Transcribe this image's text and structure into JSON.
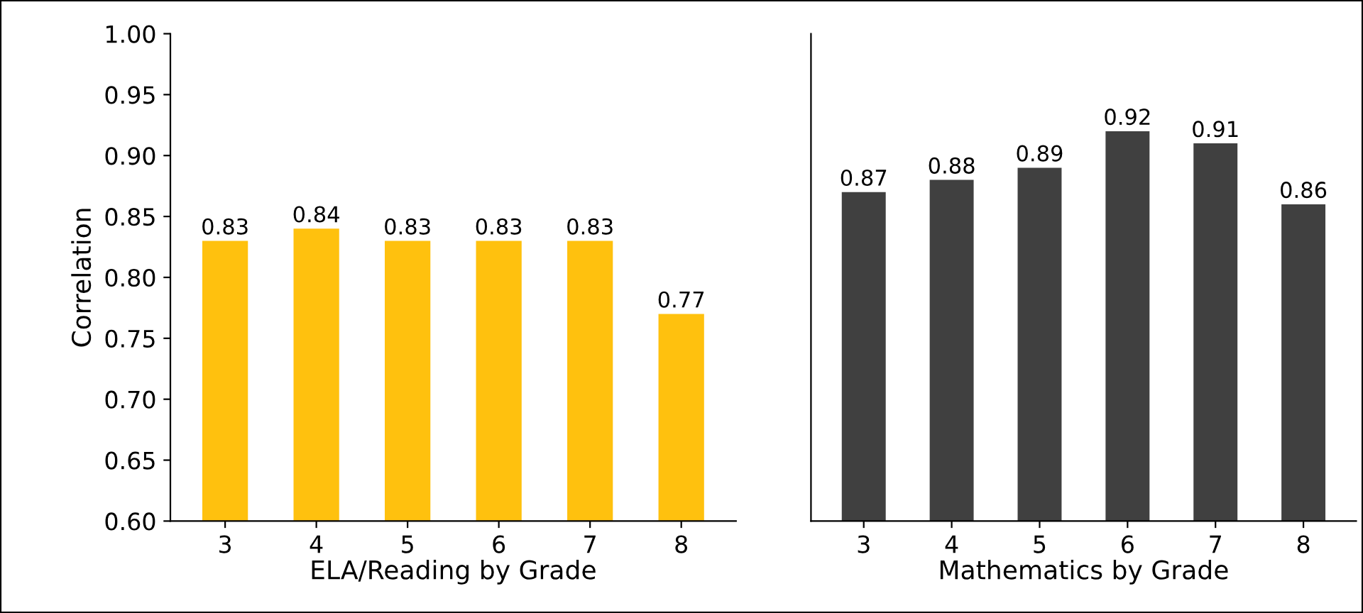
{
  "chart_data": [
    {
      "type": "bar",
      "xlabel": "ELA/Reading by Grade",
      "ylabel": "Correlation",
      "categories": [
        "3",
        "4",
        "5",
        "6",
        "7",
        "8"
      ],
      "values": [
        0.83,
        0.84,
        0.83,
        0.83,
        0.83,
        0.77
      ],
      "color": "#ffc10e",
      "ylim": [
        0.6,
        1.0
      ],
      "yticks": [
        {
          "value": 0.6,
          "label": "0.60"
        },
        {
          "value": 0.65,
          "label": "0.65"
        },
        {
          "value": 0.7,
          "label": "0.70"
        },
        {
          "value": 0.75,
          "label": "0.75"
        },
        {
          "value": 0.8,
          "label": "0.80"
        },
        {
          "value": 0.85,
          "label": "0.85"
        },
        {
          "value": 0.9,
          "label": "0.90"
        },
        {
          "value": 0.95,
          "label": "0.95"
        },
        {
          "value": 1.0,
          "label": "1.00"
        }
      ],
      "data_labels": true
    },
    {
      "type": "bar",
      "xlabel": "Mathematics by Grade",
      "categories": [
        "3",
        "4",
        "5",
        "6",
        "7",
        "8"
      ],
      "values": [
        0.87,
        0.88,
        0.89,
        0.92,
        0.91,
        0.86
      ],
      "color": "#404040",
      "ylim": [
        0.6,
        1.0
      ],
      "tick_labels": "x",
      "data_labels": true
    }
  ]
}
